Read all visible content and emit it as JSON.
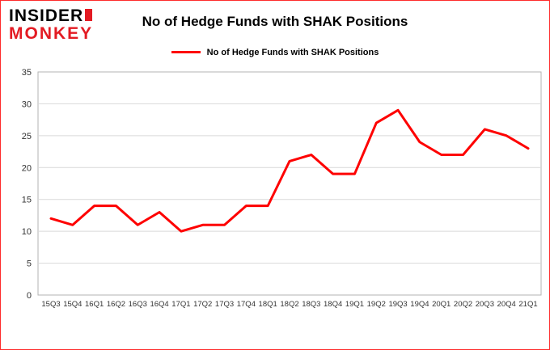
{
  "header": {
    "logo_line1": "INSIDER",
    "logo_line2": "MONKEY",
    "title": "No of Hedge Funds with SHAK Positions"
  },
  "legend": {
    "label": "No of Hedge Funds with SHAK Positions",
    "line_color": "#fe0000"
  },
  "chart_data": {
    "type": "line",
    "title": "No of Hedge Funds with SHAK Positions",
    "categories": [
      "15Q3",
      "15Q4",
      "16Q1",
      "16Q2",
      "16Q3",
      "16Q4",
      "17Q1",
      "17Q2",
      "17Q3",
      "17Q4",
      "18Q1",
      "18Q2",
      "18Q3",
      "18Q4",
      "19Q1",
      "19Q2",
      "19Q3",
      "19Q4",
      "20Q1",
      "20Q2",
      "20Q3",
      "20Q4",
      "21Q1"
    ],
    "values": [
      12,
      11,
      14,
      14,
      11,
      13,
      10,
      11,
      11,
      14,
      14,
      21,
      22,
      19,
      19,
      27,
      29,
      24,
      22,
      22,
      26,
      25,
      23
    ],
    "xlabel": "",
    "ylabel": "",
    "ylim": [
      0,
      35
    ],
    "yticks": [
      0,
      5,
      10,
      15,
      20,
      25,
      30,
      35
    ],
    "grid": true,
    "legend_position": "top",
    "line_color": "#fe0000",
    "grid_color": "#d9d9d9",
    "axis_color": "#b3b3b3",
    "tick_label_color": "#333333"
  }
}
